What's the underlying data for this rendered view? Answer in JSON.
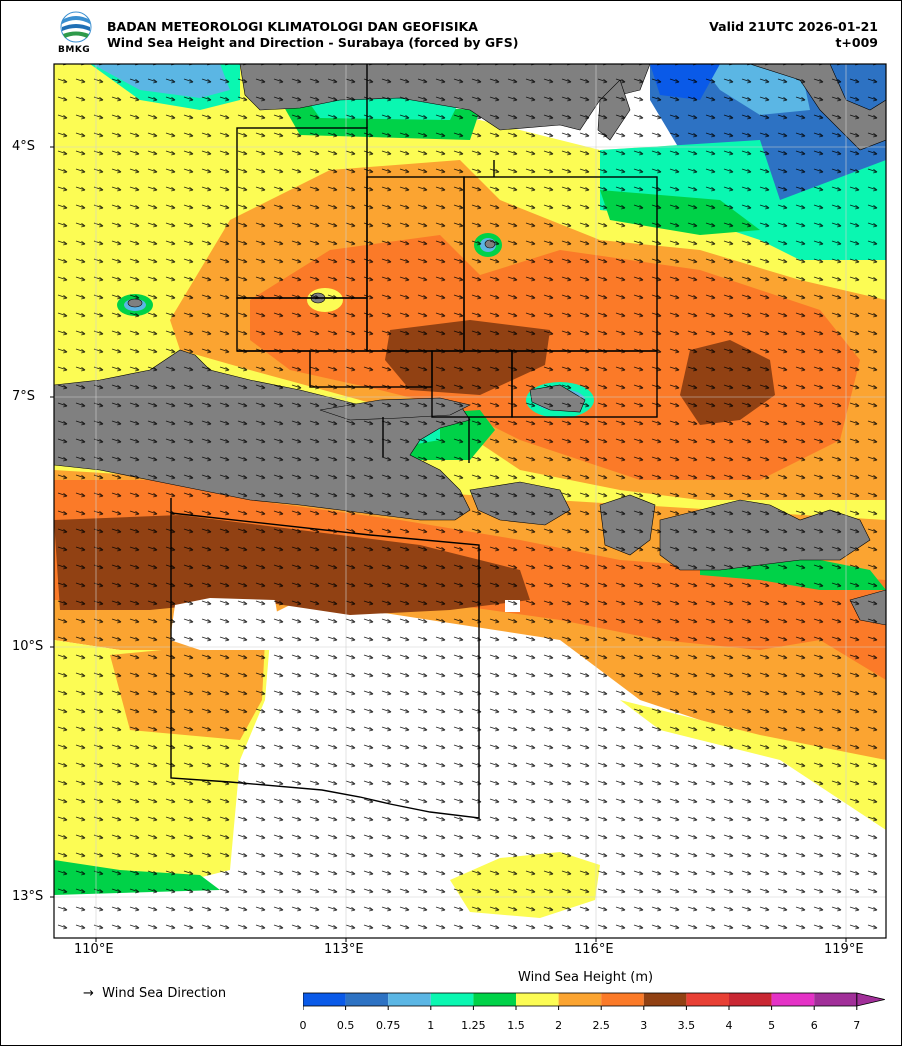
{
  "header": {
    "agency": "BADAN METEOROLOGI KLIMATOLOGI DAN GEOFISIKA",
    "product": "Wind Sea Height and Direction - Surabaya (forced by GFS)",
    "valid": "Valid 21UTC 2026-01-21",
    "lead": "t+009",
    "logo_text": "BMKG"
  },
  "axes": {
    "lat_labels": [
      "4°S",
      "7°S",
      "10°S",
      "13°S"
    ],
    "lon_labels": [
      "110°E",
      "113°E",
      "116°E",
      "119°E"
    ]
  },
  "legend": {
    "arrow_symbol": "→",
    "arrow_label": "Wind Sea Direction"
  },
  "colorbar": {
    "title": "Wind Sea Height (m)",
    "ticks": [
      "0",
      "0.5",
      "0.75",
      "1",
      "1.25",
      "1.5",
      "2",
      "2.5",
      "3",
      "3.5",
      "4",
      "5",
      "6",
      "7"
    ],
    "colors": [
      "#0a5ae8",
      "#2d72c3",
      "#5bb6e4",
      "#0af7b1",
      "#00d248",
      "#fcfc54",
      "#fba431",
      "#fb7a28",
      "#914113",
      "#e84035",
      "#c92733",
      "#e432c6",
      "#a12f99"
    ]
  },
  "colors": {
    "land": "#808080",
    "no_data": "#ffffff"
  }
}
